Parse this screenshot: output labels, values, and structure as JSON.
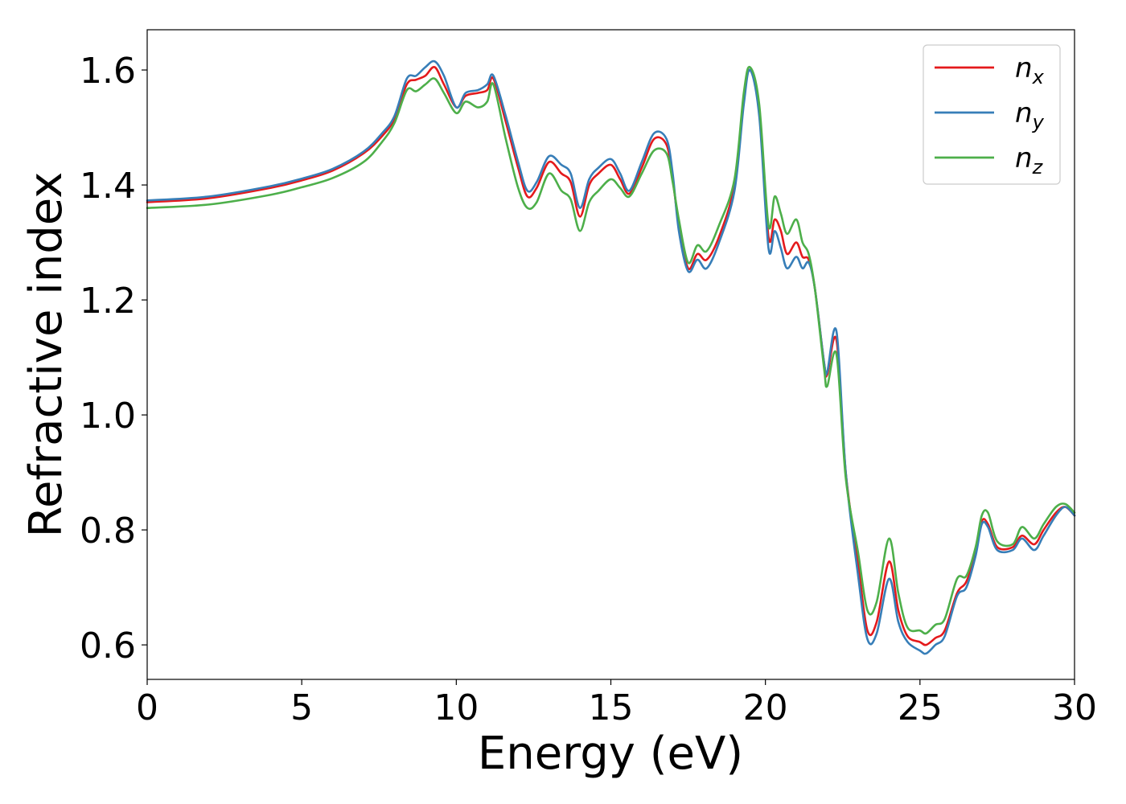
{
  "chart_data": {
    "type": "line",
    "xlabel": "Energy (eV)",
    "ylabel": "Refractive index",
    "xlim": [
      0,
      30
    ],
    "ylim": [
      0.54,
      1.67
    ],
    "xticks": [
      0,
      5,
      10,
      15,
      20,
      25,
      30
    ],
    "xtick_labels": [
      "0",
      "5",
      "10",
      "15",
      "20",
      "25",
      "30"
    ],
    "yticks": [
      0.6,
      0.8,
      1.0,
      1.2,
      1.4,
      1.6
    ],
    "ytick_labels": [
      "0.6",
      "0.8",
      "1.0",
      "1.2",
      "1.4",
      "1.6"
    ],
    "grid": false,
    "legend_position": "top-right",
    "x": [
      0,
      2,
      4,
      5,
      6,
      7,
      7.6,
      8.0,
      8.4,
      8.7,
      9.0,
      9.3,
      9.6,
      10.0,
      10.3,
      10.7,
      11.0,
      11.2,
      11.6,
      12.0,
      12.3,
      12.6,
      13.0,
      13.4,
      13.7,
      14.0,
      14.3,
      14.6,
      15.0,
      15.3,
      15.6,
      16.0,
      16.4,
      16.8,
      17.0,
      17.2,
      17.5,
      17.8,
      18.1,
      18.5,
      19.0,
      19.3,
      19.5,
      19.8,
      20.1,
      20.3,
      20.5,
      20.7,
      21.0,
      21.2,
      21.4,
      21.6,
      21.9,
      22.0,
      22.3,
      22.6,
      23.0,
      23.3,
      23.6,
      24.0,
      24.3,
      24.6,
      25.0,
      25.2,
      25.5,
      25.8,
      26.2,
      26.5,
      26.8,
      27.0,
      27.2,
      27.5,
      28.0,
      28.3,
      28.7,
      29.0,
      29.4,
      29.7,
      30.0
    ],
    "series": [
      {
        "name": "n_x",
        "label_base": "n",
        "label_sub": "x",
        "color": "#e41a1c",
        "values": [
          1.37,
          1.377,
          1.395,
          1.408,
          1.425,
          1.455,
          1.485,
          1.515,
          1.575,
          1.583,
          1.59,
          1.605,
          1.575,
          1.535,
          1.555,
          1.56,
          1.565,
          1.585,
          1.51,
          1.43,
          1.38,
          1.395,
          1.44,
          1.42,
          1.405,
          1.345,
          1.4,
          1.42,
          1.435,
          1.41,
          1.385,
          1.43,
          1.48,
          1.47,
          1.41,
          1.33,
          1.255,
          1.28,
          1.27,
          1.31,
          1.4,
          1.55,
          1.6,
          1.53,
          1.31,
          1.34,
          1.32,
          1.28,
          1.3,
          1.275,
          1.27,
          1.22,
          1.09,
          1.07,
          1.13,
          0.9,
          0.74,
          0.625,
          0.64,
          0.745,
          0.66,
          0.615,
          0.605,
          0.6,
          0.612,
          0.625,
          0.69,
          0.71,
          0.76,
          0.815,
          0.81,
          0.77,
          0.77,
          0.79,
          0.775,
          0.8,
          0.83,
          0.84,
          0.825
        ]
      },
      {
        "name": "n_y",
        "label_base": "n",
        "label_sub": "y",
        "color": "#377eb8",
        "values": [
          1.373,
          1.38,
          1.398,
          1.411,
          1.428,
          1.458,
          1.49,
          1.52,
          1.585,
          1.59,
          1.605,
          1.615,
          1.59,
          1.535,
          1.56,
          1.565,
          1.575,
          1.59,
          1.52,
          1.44,
          1.39,
          1.405,
          1.45,
          1.435,
          1.42,
          1.36,
          1.41,
          1.43,
          1.445,
          1.42,
          1.39,
          1.44,
          1.49,
          1.48,
          1.42,
          1.32,
          1.25,
          1.27,
          1.255,
          1.3,
          1.39,
          1.54,
          1.6,
          1.52,
          1.29,
          1.32,
          1.29,
          1.255,
          1.275,
          1.255,
          1.265,
          1.22,
          1.09,
          1.075,
          1.145,
          0.9,
          0.72,
          0.61,
          0.62,
          0.715,
          0.64,
          0.605,
          0.59,
          0.585,
          0.6,
          0.615,
          0.685,
          0.7,
          0.755,
          0.81,
          0.805,
          0.765,
          0.765,
          0.785,
          0.765,
          0.79,
          0.825,
          0.84,
          0.825
        ]
      },
      {
        "name": "n_z",
        "label_base": "n",
        "label_sub": "z",
        "color": "#4daf4a",
        "values": [
          1.36,
          1.366,
          1.383,
          1.396,
          1.412,
          1.44,
          1.475,
          1.508,
          1.565,
          1.563,
          1.575,
          1.585,
          1.56,
          1.525,
          1.545,
          1.535,
          1.545,
          1.575,
          1.48,
          1.395,
          1.36,
          1.37,
          1.42,
          1.39,
          1.375,
          1.32,
          1.37,
          1.39,
          1.41,
          1.395,
          1.38,
          1.42,
          1.46,
          1.455,
          1.405,
          1.34,
          1.265,
          1.295,
          1.285,
          1.33,
          1.41,
          1.56,
          1.605,
          1.54,
          1.33,
          1.38,
          1.35,
          1.315,
          1.34,
          1.3,
          1.28,
          1.22,
          1.08,
          1.05,
          1.105,
          0.89,
          0.76,
          0.66,
          0.675,
          0.785,
          0.69,
          0.63,
          0.625,
          0.62,
          0.635,
          0.645,
          0.715,
          0.72,
          0.77,
          0.825,
          0.83,
          0.78,
          0.775,
          0.805,
          0.785,
          0.81,
          0.84,
          0.845,
          0.83
        ]
      }
    ]
  }
}
